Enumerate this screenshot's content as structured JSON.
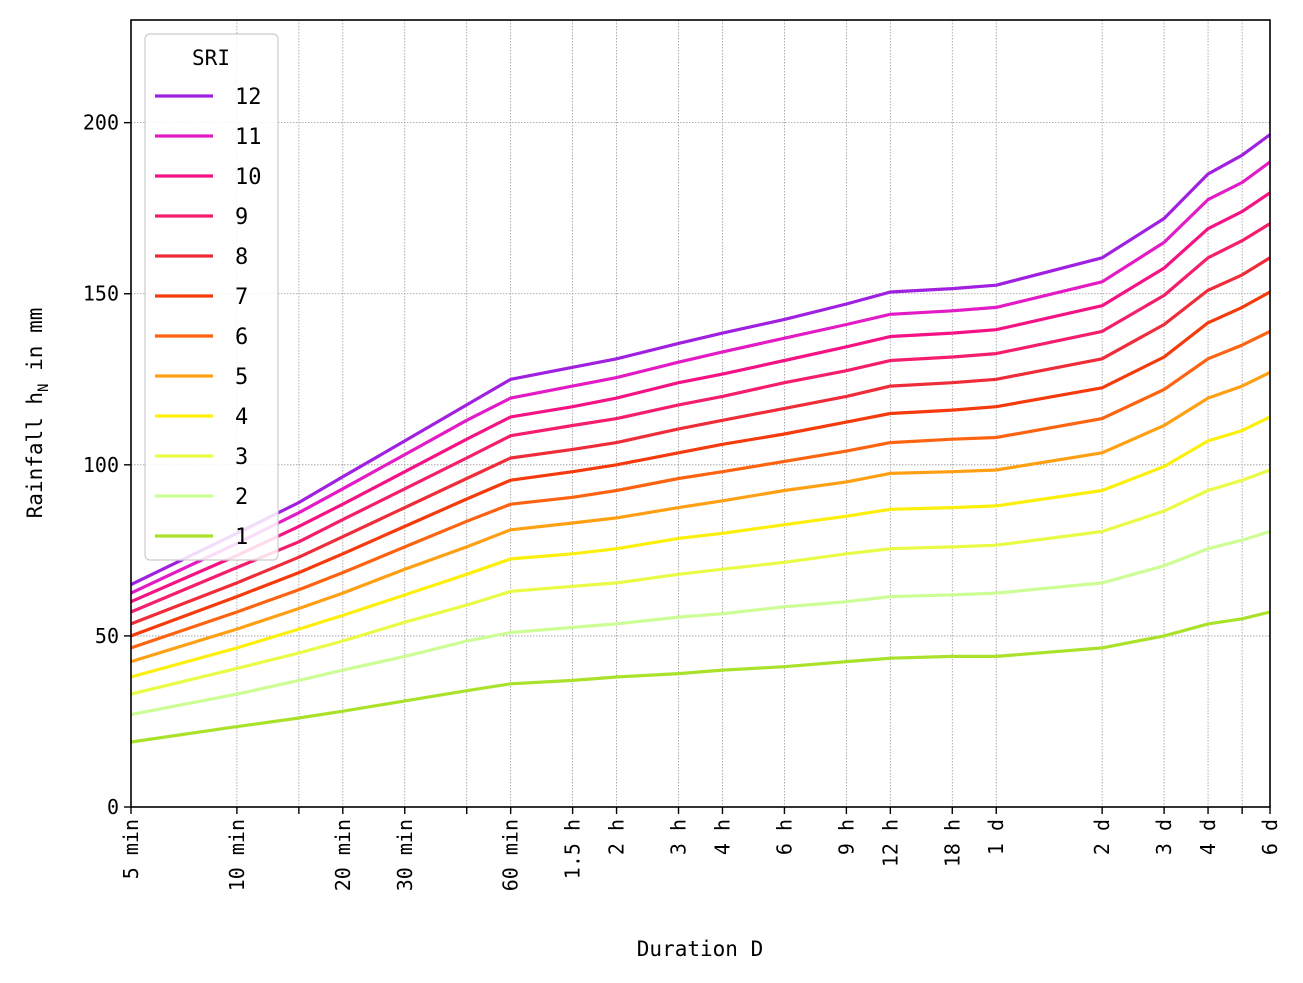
{
  "chart_data": {
    "type": "line",
    "xlabel": "Duration D",
    "ylabel": "Rainfall h",
    "ylabel_sub": "N",
    "ylabel_suffix": " in mm",
    "x_scale": "log",
    "x_unit": "minutes",
    "xlim": [
      5,
      8640
    ],
    "ylim": [
      0,
      230
    ],
    "grid": true,
    "legend_title": "SRI",
    "legend_position": "top-left",
    "x": [
      5,
      10,
      15,
      20,
      30,
      45,
      60,
      90,
      120,
      180,
      240,
      360,
      540,
      720,
      1080,
      1440,
      2880,
      4320,
      5760,
      7200,
      8640
    ],
    "x_ticks": [
      {
        "value": 5,
        "label": "5 min"
      },
      {
        "value": 10,
        "label": "10 min"
      },
      {
        "value": 15,
        "label": ""
      },
      {
        "value": 20,
        "label": "20 min"
      },
      {
        "value": 30,
        "label": "30 min"
      },
      {
        "value": 45,
        "label": ""
      },
      {
        "value": 60,
        "label": "60 min"
      },
      {
        "value": 90,
        "label": "1.5 h"
      },
      {
        "value": 120,
        "label": "2 h"
      },
      {
        "value": 180,
        "label": "3 h"
      },
      {
        "value": 240,
        "label": "4 h"
      },
      {
        "value": 360,
        "label": "6 h"
      },
      {
        "value": 540,
        "label": "9 h"
      },
      {
        "value": 720,
        "label": "12 h"
      },
      {
        "value": 1080,
        "label": "18 h"
      },
      {
        "value": 1440,
        "label": "1 d"
      },
      {
        "value": 2880,
        "label": "2 d"
      },
      {
        "value": 4320,
        "label": "3 d"
      },
      {
        "value": 5760,
        "label": "4 d"
      },
      {
        "value": 7200,
        "label": ""
      },
      {
        "value": 8640,
        "label": "6 d"
      }
    ],
    "y_ticks": [
      0,
      50,
      100,
      150,
      200
    ],
    "series": [
      {
        "name": "12",
        "color": "#a020e0",
        "values": [
          65,
          80,
          89,
          96.5,
          107,
          117.5,
          125,
          128.5,
          131,
          135.5,
          138.5,
          142.5,
          147,
          150.5,
          151.5,
          152.5,
          160.5,
          172,
          185,
          190.5,
          196.5
        ]
      },
      {
        "name": "11",
        "color": "#e31bc5",
        "values": [
          62.5,
          77,
          86,
          93,
          103,
          113,
          119.5,
          123,
          125.5,
          130,
          133,
          137,
          141,
          144,
          145,
          146,
          153.5,
          165,
          177.5,
          182.5,
          188.5
        ]
      },
      {
        "name": "10",
        "color": "#f51284",
        "values": [
          60,
          73.5,
          82,
          88.5,
          98,
          107.5,
          114,
          117,
          119.5,
          124,
          126.5,
          130.5,
          134.5,
          137.5,
          138.5,
          139.5,
          146.5,
          157.5,
          169,
          174,
          179.5
        ]
      },
      {
        "name": "9",
        "color": "#f51e6e",
        "values": [
          57,
          70,
          77.5,
          84,
          93,
          102,
          108.5,
          111.5,
          113.5,
          117.5,
          120,
          124,
          127.5,
          130.5,
          131.5,
          132.5,
          139,
          149.5,
          160.5,
          165.5,
          170.5
        ]
      },
      {
        "name": "8",
        "color": "#ef2d3a",
        "values": [
          53.5,
          65.5,
          73,
          79,
          87.5,
          96,
          102,
          104.5,
          106.5,
          110.5,
          113,
          116.5,
          120,
          123,
          124,
          125,
          131,
          141,
          151,
          155.5,
          160.5
        ]
      },
      {
        "name": "7",
        "color": "#f53a0c",
        "values": [
          50,
          61.5,
          68.5,
          74,
          82,
          90,
          95.5,
          98,
          100,
          103.5,
          106,
          109,
          112.5,
          115,
          116,
          117,
          122.5,
          131.5,
          141.5,
          146,
          150.5
        ]
      },
      {
        "name": "6",
        "color": "#fd6412",
        "values": [
          46.5,
          57,
          63.5,
          68.5,
          76,
          83.5,
          88.5,
          90.5,
          92.5,
          96,
          98,
          101,
          104,
          106.5,
          107.5,
          108,
          113.5,
          122,
          131,
          135,
          139
        ]
      },
      {
        "name": "5",
        "color": "#ffa014",
        "values": [
          42.5,
          52,
          58,
          62.5,
          69.5,
          76,
          81,
          83,
          84.5,
          87.5,
          89.5,
          92.5,
          95,
          97.5,
          98,
          98.5,
          103.5,
          111.5,
          119.5,
          123,
          127
        ]
      },
      {
        "name": "4",
        "color": "#fcef0c",
        "values": [
          38,
          46.5,
          52,
          56,
          62,
          68,
          72.5,
          74,
          75.5,
          78.5,
          80,
          82.5,
          85,
          87,
          87.5,
          88,
          92.5,
          99.5,
          107,
          110,
          114
        ]
      },
      {
        "name": "3",
        "color": "#e9fb45",
        "values": [
          33,
          40.5,
          45,
          48.5,
          54,
          59,
          63,
          64.5,
          65.5,
          68,
          69.5,
          71.5,
          74,
          75.5,
          76,
          76.5,
          80.5,
          86.5,
          92.5,
          95.5,
          98.5
        ]
      },
      {
        "name": "2",
        "color": "#cdfe96",
        "values": [
          27,
          33,
          37,
          40,
          44,
          48.5,
          51,
          52.5,
          53.5,
          55.5,
          56.5,
          58.5,
          60,
          61.5,
          62,
          62.5,
          65.5,
          70.5,
          75.5,
          78,
          80.5
        ]
      },
      {
        "name": "1",
        "color": "#aae22b",
        "values": [
          19,
          23.5,
          26,
          28,
          31,
          34,
          36,
          37,
          38,
          39,
          40,
          41,
          42.5,
          43.5,
          44,
          44,
          46.5,
          50,
          53.5,
          55,
          57
        ]
      }
    ]
  }
}
